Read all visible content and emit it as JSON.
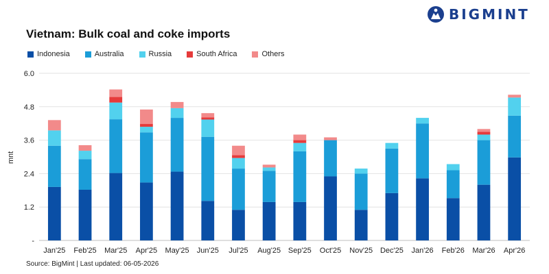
{
  "brand": {
    "name": "BIGMINT",
    "logo_color": "#1b3f8e"
  },
  "chart_data": {
    "type": "bar",
    "stacked": true,
    "title": "Vietnam: Bulk coal and coke imports",
    "xlabel": "",
    "ylabel": "mnt",
    "ylim": [
      0,
      6.0
    ],
    "yticks": [
      "-",
      "1.2",
      "2.4",
      "3.6",
      "4.8",
      "6.0"
    ],
    "grid": true,
    "legend_position": "top-left",
    "categories": [
      "Jan'25",
      "Feb'25",
      "Mar'25",
      "Apr'25",
      "May'25",
      "Jun'25",
      "Jul'25",
      "Aug'25",
      "Sep'25",
      "Oct'25",
      "Nov'25",
      "Dec'25",
      "Jan'26",
      "Feb'26",
      "Mar'26",
      "Apr'26"
    ],
    "series": [
      {
        "name": "Indonesia",
        "color": "#0a4fa6",
        "values": [
          1.92,
          1.82,
          2.42,
          2.08,
          2.47,
          1.42,
          1.1,
          1.38,
          1.38,
          2.3,
          1.1,
          1.7,
          2.23,
          1.52,
          2.0,
          2.98
        ]
      },
      {
        "name": "Australia",
        "color": "#1b9dd8",
        "values": [
          1.48,
          1.1,
          1.93,
          1.8,
          1.93,
          2.3,
          1.48,
          1.12,
          1.82,
          1.3,
          1.3,
          1.6,
          1.97,
          1.0,
          1.6,
          1.5
        ]
      },
      {
        "name": "Russia",
        "color": "#52d1ee",
        "values": [
          0.55,
          0.3,
          0.6,
          0.2,
          0.35,
          0.62,
          0.38,
          0.12,
          0.3,
          0.0,
          0.18,
          0.2,
          0.2,
          0.22,
          0.2,
          0.65
        ]
      },
      {
        "name": "South Africa",
        "color": "#e63b3b",
        "values": [
          0.0,
          0.0,
          0.2,
          0.1,
          0.0,
          0.08,
          0.1,
          0.0,
          0.1,
          0.0,
          0.0,
          0.0,
          0.0,
          0.0,
          0.1,
          0.0
        ]
      },
      {
        "name": "Others",
        "color": "#f28a8a",
        "values": [
          0.37,
          0.2,
          0.27,
          0.52,
          0.22,
          0.15,
          0.34,
          0.1,
          0.2,
          0.1,
          0.0,
          0.0,
          0.0,
          0.0,
          0.1,
          0.1
        ]
      }
    ]
  },
  "footer": {
    "source": "Source: BigMint | Last updated: 06-05-2026"
  }
}
